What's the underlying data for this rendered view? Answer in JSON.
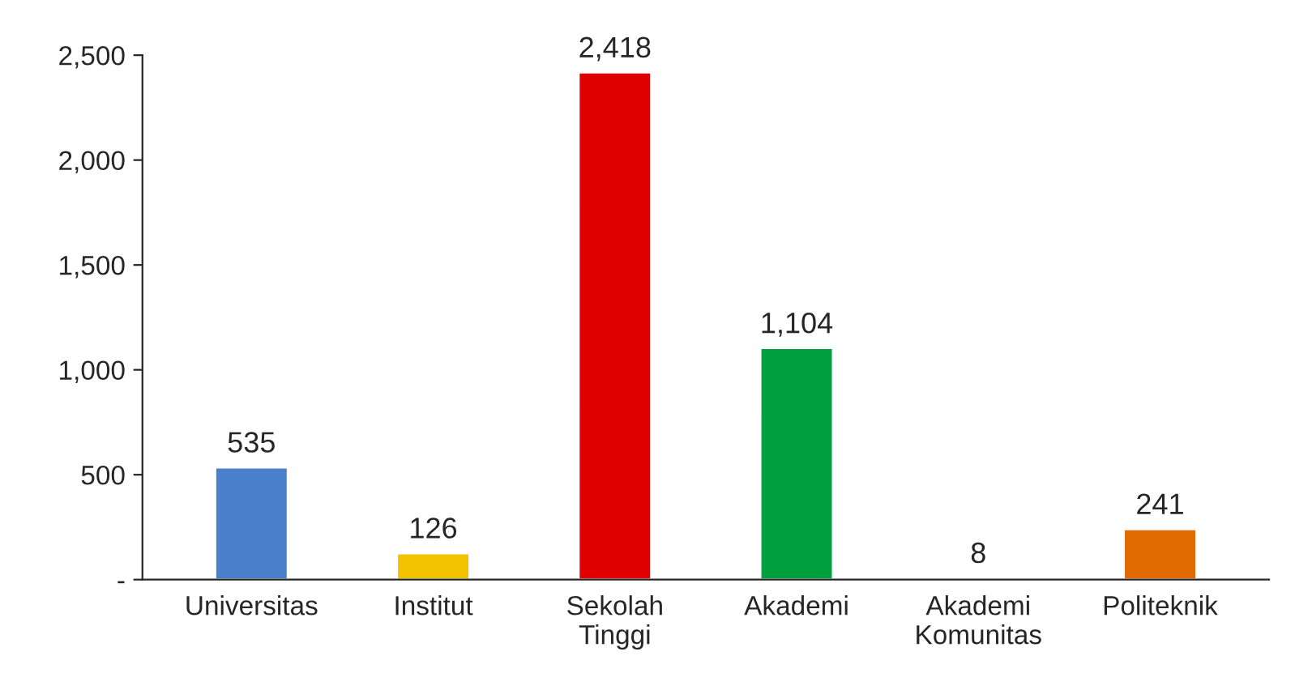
{
  "chart_data": {
    "type": "bar",
    "categories": [
      "Universitas",
      "Institut",
      "Sekolah\nTinggi",
      "Akademi",
      "Akademi\nKomunitas",
      "Politeknik"
    ],
    "values": [
      535,
      126,
      2418,
      1104,
      8,
      241
    ],
    "value_labels": [
      "535",
      "126",
      "2,418",
      "1,104",
      "8",
      "241"
    ],
    "colors": [
      "#4a7fcc",
      "#f2c200",
      "#e00000",
      "#00a040",
      "#c0302a",
      "#e06a00"
    ],
    "ylim": [
      0,
      2500
    ],
    "yticks": [
      {
        "value": 0,
        "label": "-"
      },
      {
        "value": 500,
        "label": "500"
      },
      {
        "value": 1000,
        "label": "1,000"
      },
      {
        "value": 1500,
        "label": "1,500"
      },
      {
        "value": 2000,
        "label": "2,000"
      },
      {
        "value": 2500,
        "label": "2,500"
      }
    ],
    "grid": false
  }
}
